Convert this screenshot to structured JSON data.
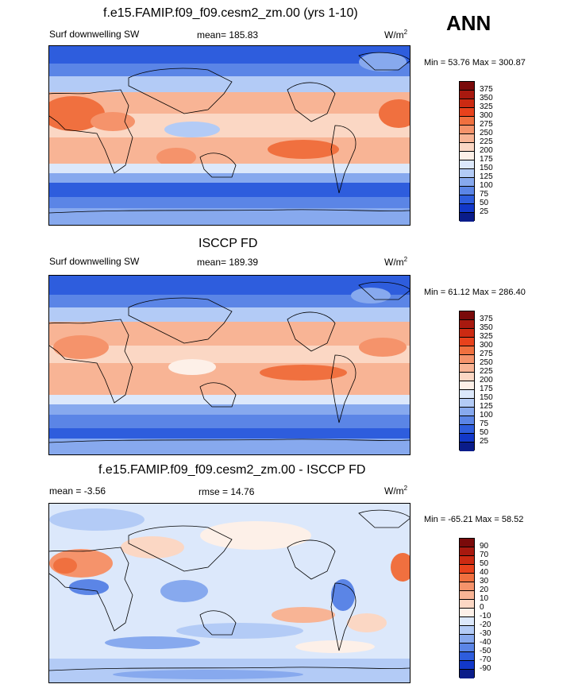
{
  "season": "ANN",
  "panels": [
    {
      "title": "f.e15.FAMIP.f09_f09.cesm2_zm.00 (yrs 1-10)",
      "left_label": "Surf downwelling SW",
      "center_label": "mean= 185.83",
      "units": "W/m",
      "units_sup": "2",
      "minmax": "Min =  53.76 Max = 300.87",
      "colorbar_labels": [
        "375",
        "350",
        "325",
        "300",
        "275",
        "250",
        "225",
        "200",
        "175",
        "150",
        "125",
        "100",
        "75",
        "50",
        "25"
      ],
      "colorbar_colors": [
        "#7a0a0a",
        "#a8190f",
        "#cc2a12",
        "#e8421c",
        "#f0703f",
        "#f5936b",
        "#f8b495",
        "#fbd7c4",
        "#fdf0e8",
        "#dce8fb",
        "#b3cbf6",
        "#87a9ee",
        "#5b85e6",
        "#2e5ddd",
        "#1238c9",
        "#0a1c8a"
      ]
    },
    {
      "title": "ISCCP FD",
      "left_label": "Surf downwelling SW",
      "center_label": "mean= 189.39",
      "units": "W/m",
      "units_sup": "2",
      "minmax": "Min =  61.12 Max = 286.40",
      "colorbar_labels": [
        "375",
        "350",
        "325",
        "300",
        "275",
        "250",
        "225",
        "200",
        "175",
        "150",
        "125",
        "100",
        "75",
        "50",
        "25"
      ],
      "colorbar_colors": [
        "#7a0a0a",
        "#a8190f",
        "#cc2a12",
        "#e8421c",
        "#f0703f",
        "#f5936b",
        "#f8b495",
        "#fbd7c4",
        "#fdf0e8",
        "#dce8fb",
        "#b3cbf6",
        "#87a9ee",
        "#5b85e6",
        "#2e5ddd",
        "#1238c9",
        "#0a1c8a"
      ]
    },
    {
      "title": "f.e15.FAMIP.f09_f09.cesm2_zm.00 - ISCCP FD",
      "left_label": "mean =  -3.56",
      "center_label": "rmse =  14.76",
      "units": "W/m",
      "units_sup": "2",
      "minmax": "Min = -65.21 Max =  58.52",
      "colorbar_labels": [
        "90",
        "70",
        "50",
        "40",
        "30",
        "20",
        "10",
        "0",
        "-10",
        "-20",
        "-30",
        "-40",
        "-50",
        "-70",
        "-90"
      ],
      "colorbar_colors": [
        "#7a0a0a",
        "#a8190f",
        "#cc2a12",
        "#e8421c",
        "#f0703f",
        "#f5936b",
        "#f8b495",
        "#fbd7c4",
        "#fdf0e8",
        "#dce8fb",
        "#b3cbf6",
        "#87a9ee",
        "#5b85e6",
        "#2e5ddd",
        "#1238c9",
        "#0a1c8a"
      ]
    }
  ],
  "chart_data": [
    {
      "type": "heatmap",
      "title": "f.e15.FAMIP.f09_f09.cesm2_zm.00 (yrs 1-10)",
      "variable": "Surf downwelling SW",
      "units": "W/m2",
      "mean": 185.83,
      "min": 53.76,
      "max": 300.87,
      "levels": [
        25,
        50,
        75,
        100,
        125,
        150,
        175,
        200,
        225,
        250,
        275,
        300,
        325,
        350,
        375
      ]
    },
    {
      "type": "heatmap",
      "title": "ISCCP FD",
      "variable": "Surf downwelling SW",
      "units": "W/m2",
      "mean": 189.39,
      "min": 61.12,
      "max": 286.4,
      "levels": [
        25,
        50,
        75,
        100,
        125,
        150,
        175,
        200,
        225,
        250,
        275,
        300,
        325,
        350,
        375
      ]
    },
    {
      "type": "heatmap",
      "title": "f.e15.FAMIP.f09_f09.cesm2_zm.00 - ISCCP FD",
      "units": "W/m2",
      "mean": -3.56,
      "rmse": 14.76,
      "min": -65.21,
      "max": 58.52,
      "levels": [
        -90,
        -70,
        -50,
        -40,
        -30,
        -20,
        -10,
        0,
        10,
        20,
        30,
        40,
        50,
        70,
        90
      ]
    }
  ]
}
